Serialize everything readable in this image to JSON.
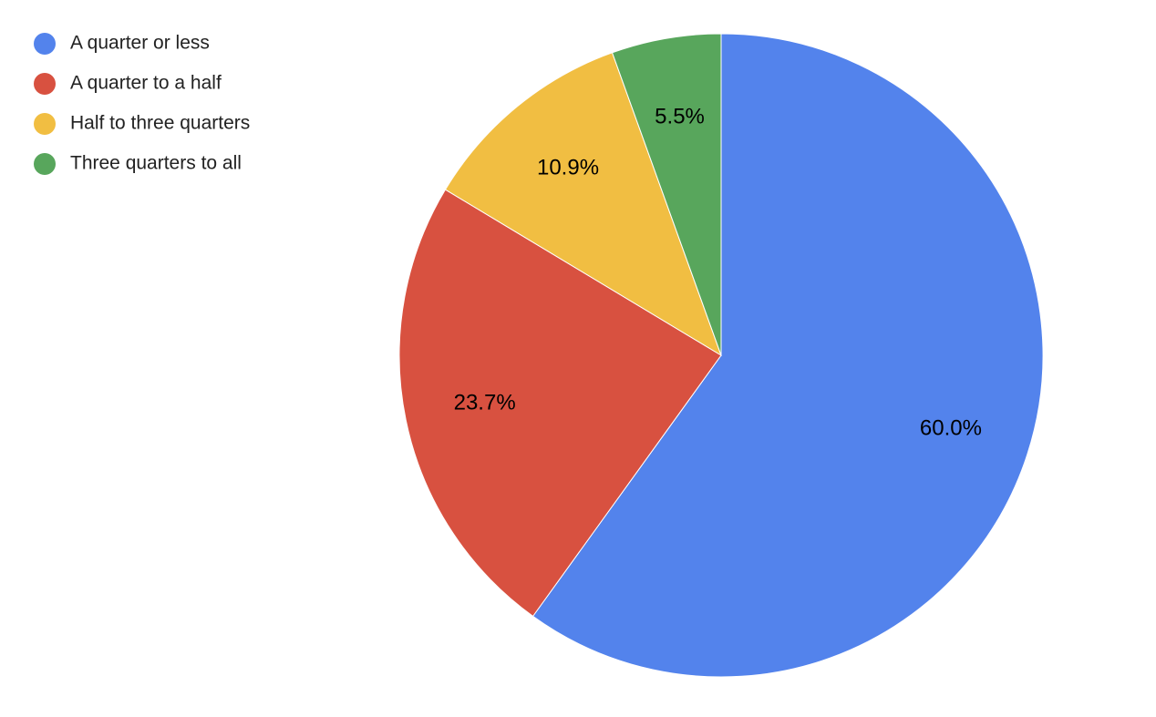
{
  "chart_data": {
    "type": "pie",
    "categories": [
      "A quarter or less",
      "A quarter to a half",
      "Half to three quarters",
      "Three quarters to all"
    ],
    "values": [
      60.0,
      23.7,
      10.9,
      5.5
    ],
    "value_labels": [
      "60.0%",
      "23.7%",
      "10.9%",
      "5.5%"
    ],
    "colors": [
      "#5383ec",
      "#d85140",
      "#f1be42",
      "#58a65c"
    ],
    "legend": "top-left"
  }
}
